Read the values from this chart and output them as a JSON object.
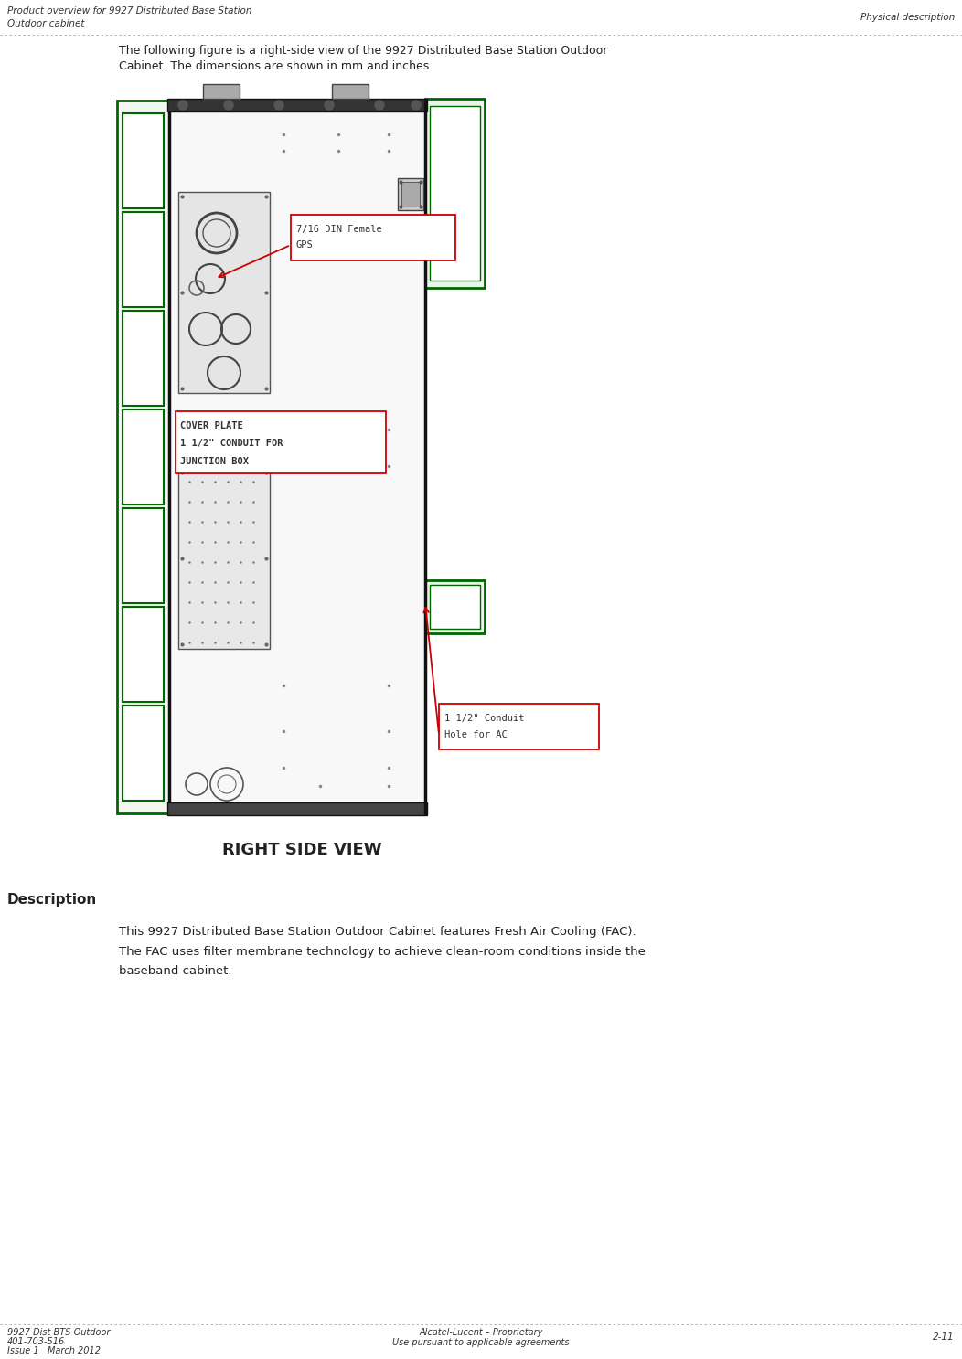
{
  "page_width": 10.52,
  "page_height": 14.87,
  "bg_color": "#ffffff",
  "header_left_line1": "Product overview for 9927 Distributed Base Station",
  "header_left_line2": "Outdoor cabinet",
  "header_right": "Physical description",
  "footer_left_line1": "9927 Dist BTS Outdoor",
  "footer_left_line2": "401-703-516",
  "footer_left_line3": "Issue 1   March 2012",
  "footer_center_line1": "Alcatel-Lucent – Proprietary",
  "footer_center_line2": "Use pursuant to applicable agreements",
  "footer_right": "2-11",
  "intro_text_line1": "The following figure is a right-side view of the 9927 Distributed Base Station Outdoor",
  "intro_text_line2": "Cabinet. The dimensions are shown in mm and inches.",
  "figure_caption": "RIGHT SIDE VIEW",
  "desc_header": "Description",
  "desc_text_line1": "This 9927 Distributed Base Station Outdoor Cabinet features Fresh Air Cooling (FAC).",
  "desc_text_line2": "The FAC uses filter membrane technology to achieve clean-room conditions inside the",
  "desc_text_line3": "baseband cabinet.",
  "label1_line1": "7/16 DIN Female",
  "label1_line2": "GPS",
  "label2_line1": "COVER PLATE",
  "label2_line2": "1 1/2\" CONDUIT FOR",
  "label2_line3": "JUNCTION BOX",
  "label3_line1": "1 1/2\" Conduit",
  "label3_line2": "Hole for AC",
  "green_color": "#006600",
  "red_label_color": "#cc0000",
  "cabinet_line_color": "#333333",
  "header_font_size": 7.5,
  "footer_font_size": 7.0,
  "intro_font_size": 9.0,
  "desc_font_size": 9.5
}
